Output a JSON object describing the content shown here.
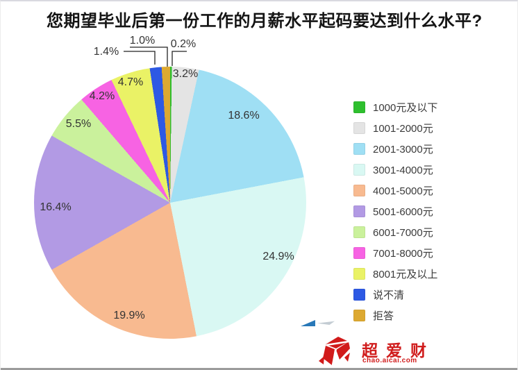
{
  "chart_data": {
    "type": "pie",
    "title": "您期望毕业后第一份工作的月薪水平起码要达到什么水平?",
    "legend_position": "right",
    "start_angle_deg": 0,
    "direction": "clockwise",
    "slices": [
      {
        "label": "1000元及以下",
        "value": 0.2,
        "pct_label": "0.2%",
        "color": "#2ebf2e"
      },
      {
        "label": "1001-2000元",
        "value": 3.2,
        "pct_label": "3.2%",
        "color": "#e4e4e4"
      },
      {
        "label": "2001-3000元",
        "value": 18.6,
        "pct_label": "18.6%",
        "color": "#9fdff4"
      },
      {
        "label": "3001-4000元",
        "value": 24.9,
        "pct_label": "24.9%",
        "color": "#d9f8f3"
      },
      {
        "label": "4001-5000元",
        "value": 19.9,
        "pct_label": "19.9%",
        "color": "#f8ba90"
      },
      {
        "label": "5001-6000元",
        "value": 16.4,
        "pct_label": "16.4%",
        "color": "#b29ae4"
      },
      {
        "label": "6001-7000元",
        "value": 5.5,
        "pct_label": "5.5%",
        "color": "#caf19c"
      },
      {
        "label": "7001-8000元",
        "value": 4.2,
        "pct_label": "4.2%",
        "color": "#f763e3"
      },
      {
        "label": "8001元及以上",
        "value": 4.7,
        "pct_label": "4.7%",
        "color": "#eaf266"
      },
      {
        "label": "说不清",
        "value": 1.4,
        "pct_label": "1.4%",
        "color": "#2d59e4"
      },
      {
        "label": "拒答",
        "value": 1.0,
        "pct_label": "1.0%",
        "color": "#dda931"
      }
    ]
  },
  "watermark": {
    "brand": "超爱财",
    "domain": "chao.aicai.com"
  }
}
